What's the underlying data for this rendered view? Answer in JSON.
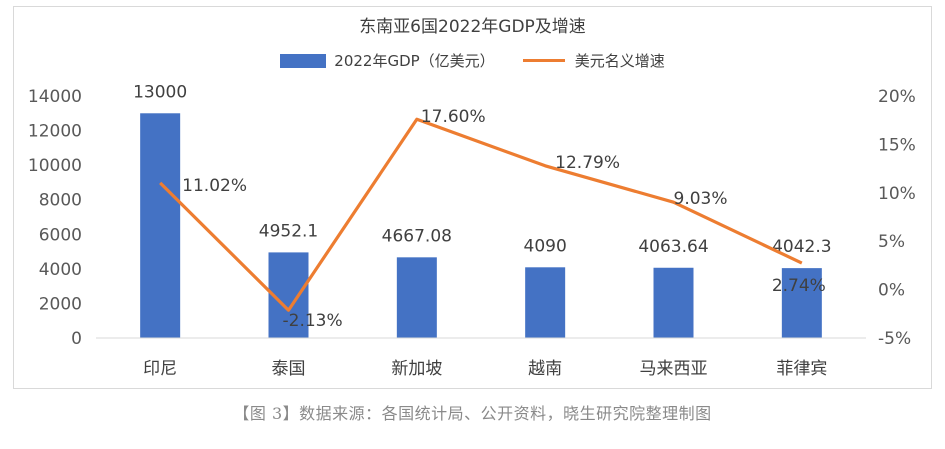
{
  "chart_data": {
    "type": "bar",
    "title": "东南亚6国2022年GDP及增速",
    "categories": [
      "印尼",
      "泰国",
      "新加坡",
      "越南",
      "马来西亚",
      "菲律宾"
    ],
    "series": [
      {
        "name": "2022年GDP（亿美元）",
        "type": "bar",
        "axis": "left",
        "values": [
          13000,
          4952.1,
          4667.08,
          4090,
          4063.64,
          4042.3
        ],
        "labels": [
          "13000",
          "4952.1",
          "4667.08",
          "4090",
          "4063.64",
          "4042.3"
        ],
        "color": "#4472C4"
      },
      {
        "name": "美元名义增速",
        "type": "line",
        "axis": "right",
        "values": [
          11.02,
          -2.13,
          17.6,
          12.79,
          9.03,
          2.74
        ],
        "labels": [
          "11.02%",
          "-2.13%",
          "17.60%",
          "12.79%",
          "9.03%",
          "2.74%"
        ],
        "color": "#ED7D31"
      }
    ],
    "y_left": {
      "ylim": [
        0,
        14000
      ],
      "ticks": [
        "0",
        "2000",
        "4000",
        "6000",
        "8000",
        "10000",
        "12000",
        "14000"
      ]
    },
    "y_right": {
      "ylim": [
        -5,
        20
      ],
      "ticks": [
        "-5%",
        "0%",
        "5%",
        "10%",
        "15%",
        "20%"
      ]
    },
    "grid": false,
    "legend_position": "top"
  },
  "source_note": "【图 3】数据来源：各国统计局、公开资料，晓生研究院整理制图"
}
